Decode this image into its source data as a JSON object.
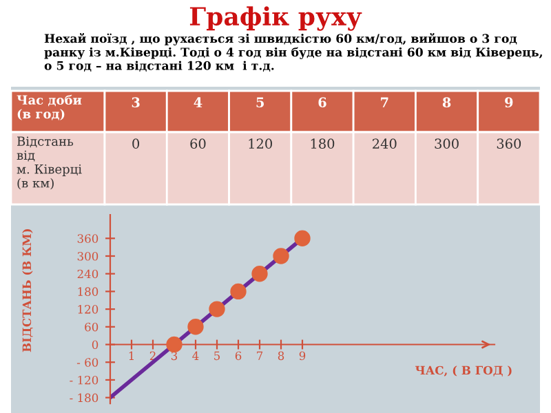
{
  "chart_data": {
    "type": "scatter",
    "title": "Графік руху",
    "subtitle": "Нехай поїзд , що рухається зі швидкістю 60 км/год, вийшов о 3 год ранку із м.Ківерці. Тоді о 4 год він буде на відстані 60 км від Ківерець, о 5 год – на відстані 120 км  і т.д.",
    "annotations": [
      "Час доби\n(в год)",
      "3",
      "4",
      "5",
      "6",
      "7",
      "8",
      "9",
      "Відстань\nвід\nм. Ківерці\n(в км)",
      "0",
      "60",
      "120",
      "180",
      "240",
      "300",
      "360"
    ],
    "xlabel": "ЧАС, ( В ГОД )",
    "ylabel": "ВІДСТАНЬ (В КМ)",
    "series": [
      {
        "type": "line",
        "color": "#6a2a9a",
        "x": [
          0,
          9
        ],
        "values": [
          -180,
          360
        ],
        "marker": "none"
      },
      {
        "color": "#e0643c",
        "x": [
          3,
          4,
          5,
          6,
          7,
          8,
          9
        ],
        "values": [
          0,
          60,
          120,
          180,
          240,
          300,
          360
        ],
        "marker": "circle"
      }
    ],
    "xlim": [
      0,
      18
    ],
    "ylim": [
      -200,
      440
    ],
    "xticks": [
      1,
      2,
      3,
      4,
      5,
      6,
      7,
      8,
      9
    ],
    "yticks": [
      {
        "value": -180,
        "label": "- 180"
      },
      {
        "value": -120,
        "label": "- 120"
      },
      {
        "value": -60,
        "label": "- 60"
      },
      0,
      60,
      120,
      180,
      240,
      300,
      360
    ],
    "grid": false,
    "legend": false
  }
}
